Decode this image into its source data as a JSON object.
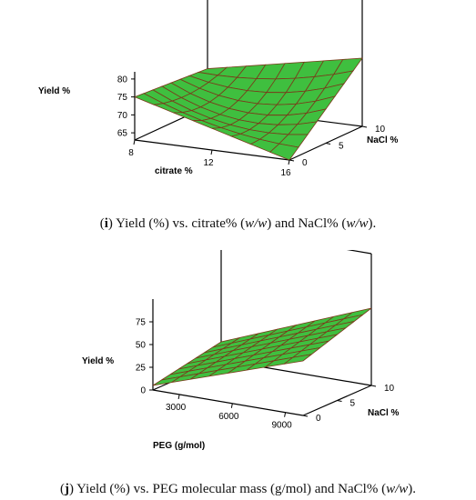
{
  "chart_data": [
    {
      "type": "surface",
      "panel": "i",
      "zlabel": "Yield %",
      "xlabel": "citrate %",
      "ylabel": "NaCl %",
      "x_ticks": [
        "8",
        "12",
        "16"
      ],
      "y_ticks": [
        "0",
        "5",
        "10"
      ],
      "z_ticks": [
        "65",
        "70",
        "75",
        "80"
      ],
      "xlim": [
        8,
        16
      ],
      "ylim": [
        0,
        10
      ],
      "zlim": [
        63,
        82
      ],
      "surface_grid": {
        "x": [
          8,
          9,
          10,
          11,
          12,
          13,
          14,
          15,
          16
        ],
        "y": [
          0,
          1.25,
          2.5,
          3.75,
          5,
          6.25,
          7.5,
          8.75,
          10
        ],
        "z_corners": {
          "x8_y0": 75,
          "x16_y0": 63,
          "x8_y10": 73.5,
          "x16_y10": 82
        },
        "z_center": 67.5
      },
      "surface_color": "#3fbf3f",
      "grid_color": "#7a3a1a"
    },
    {
      "type": "surface",
      "panel": "j",
      "zlabel": "Yield %",
      "xlabel": "PEG (g/mol)",
      "ylabel": "NaCl %",
      "x_ticks": [
        "3000",
        "6000",
        "9000"
      ],
      "y_ticks": [
        "0",
        "5",
        "10"
      ],
      "z_ticks": [
        "0",
        "25",
        "50",
        "75"
      ],
      "xlim": [
        1500,
        10000
      ],
      "ylim": [
        0,
        10
      ],
      "zlim": [
        0,
        100
      ],
      "surface_grid": {
        "x": [
          1500,
          2560,
          3620,
          4680,
          5750,
          6810,
          7870,
          8930,
          10000
        ],
        "y": [
          0,
          1.25,
          2.5,
          3.75,
          5,
          6.25,
          7.5,
          8.75,
          10
        ],
        "z_corners": {
          "x_lo_y0": 5,
          "x_hi_y0": 60,
          "x_lo_y10": 20,
          "x_hi_y10": 85
        }
      },
      "surface_color": "#3fbf3f",
      "grid_color": "#7a3a1a"
    }
  ],
  "captions": {
    "i": {
      "label": "i",
      "text": "Yield (%) vs. citrate% (w/w) and NaCl% (w/w)."
    },
    "j": {
      "label": "j",
      "text": "Yield (%) vs. PEG molecular mass (g/mol) and NaCl% (w/w)."
    }
  }
}
